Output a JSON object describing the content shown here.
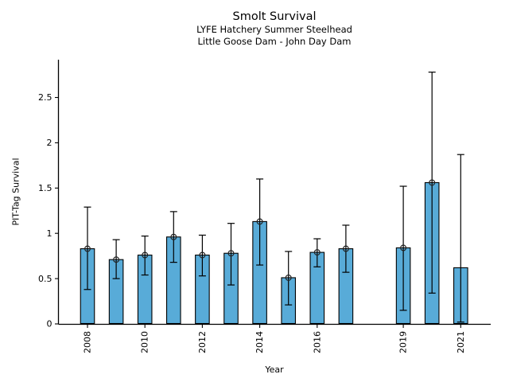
{
  "chart_data": {
    "type": "bar",
    "title": "Smolt Survival",
    "subtitle1": "LYFE Hatchery Summer Steelhead",
    "subtitle2": "Little Goose Dam - John Day Dam",
    "xlabel": "Year",
    "ylabel": "PIT-Tag Survival",
    "ylim": [
      0,
      2.92
    ],
    "x_domain": [
      2007.0,
      2022.1
    ],
    "y_ticks": [
      0,
      0.5,
      1,
      1.5,
      2,
      2.5
    ],
    "y_tick_labels": [
      "0",
      "0.5",
      "1",
      "1.5",
      "2",
      "2.5"
    ],
    "x_ticks": [
      2008,
      2010,
      2012,
      2014,
      2016,
      2019,
      2021
    ],
    "x_tick_labels": [
      "2008",
      "2010",
      "2012",
      "2014",
      "2016",
      "2019",
      "2021"
    ],
    "grid": false,
    "legend": "none",
    "bar_color": "#58abd8",
    "bar_edge_color": "#000000",
    "errorbar_color": "#000000",
    "marker": "open-circle",
    "series": [
      {
        "name": "PIT-Tag Survival",
        "points": [
          {
            "year": 2008,
            "value": 0.83,
            "ci_low": 0.38,
            "ci_high": 1.29,
            "marker": true
          },
          {
            "year": 2009,
            "value": 0.71,
            "ci_low": 0.5,
            "ci_high": 0.93,
            "marker": true
          },
          {
            "year": 2010,
            "value": 0.76,
            "ci_low": 0.54,
            "ci_high": 0.97,
            "marker": true
          },
          {
            "year": 2011,
            "value": 0.96,
            "ci_low": 0.68,
            "ci_high": 1.24,
            "marker": true
          },
          {
            "year": 2012,
            "value": 0.76,
            "ci_low": 0.53,
            "ci_high": 0.98,
            "marker": true
          },
          {
            "year": 2013,
            "value": 0.78,
            "ci_low": 0.43,
            "ci_high": 1.11,
            "marker": true
          },
          {
            "year": 2014,
            "value": 1.13,
            "ci_low": 0.65,
            "ci_high": 1.6,
            "marker": true
          },
          {
            "year": 2015,
            "value": 0.51,
            "ci_low": 0.21,
            "ci_high": 0.8,
            "marker": true
          },
          {
            "year": 2016,
            "value": 0.79,
            "ci_low": 0.63,
            "ci_high": 0.94,
            "marker": true
          },
          {
            "year": 2017,
            "value": 0.83,
            "ci_low": 0.57,
            "ci_high": 1.09,
            "marker": true
          },
          {
            "year": 2019,
            "value": 0.84,
            "ci_low": 0.15,
            "ci_high": 1.52,
            "marker": true
          },
          {
            "year": 2020,
            "value": 1.56,
            "ci_low": 0.34,
            "ci_high": 2.78,
            "marker": true
          },
          {
            "year": 2021,
            "value": 0.62,
            "ci_low": 0.02,
            "ci_high": 1.87,
            "marker": false
          }
        ]
      }
    ]
  }
}
